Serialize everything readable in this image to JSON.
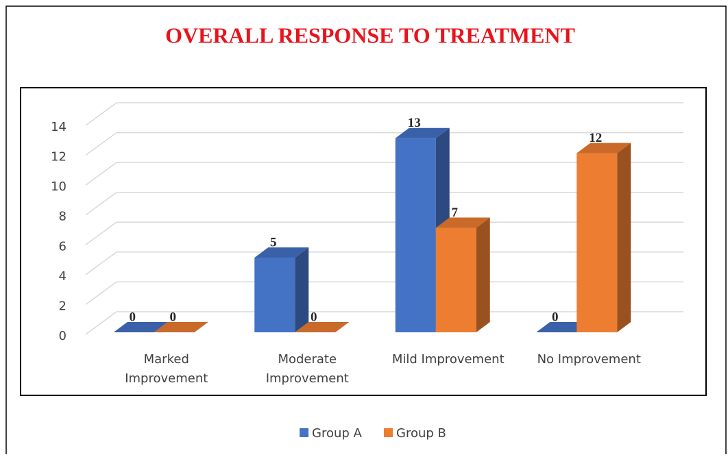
{
  "chart_data": {
    "type": "bar3d",
    "title": "OVERALL RESPONSE TO TREATMENT",
    "categories": [
      "Marked Improvement",
      "Moderate Improvement",
      "Mild Improvement",
      "No Improvement"
    ],
    "series": [
      {
        "name": "Group A",
        "color": "#4472c4",
        "values": [
          0,
          5,
          13,
          0
        ]
      },
      {
        "name": "Group B",
        "color": "#ed7d31",
        "values": [
          0,
          0,
          7,
          12
        ]
      }
    ],
    "ylim": [
      0,
      14
    ],
    "yticks": [
      0,
      2,
      4,
      6,
      8,
      10,
      12,
      14
    ],
    "grid": true,
    "legend": "bottom"
  }
}
